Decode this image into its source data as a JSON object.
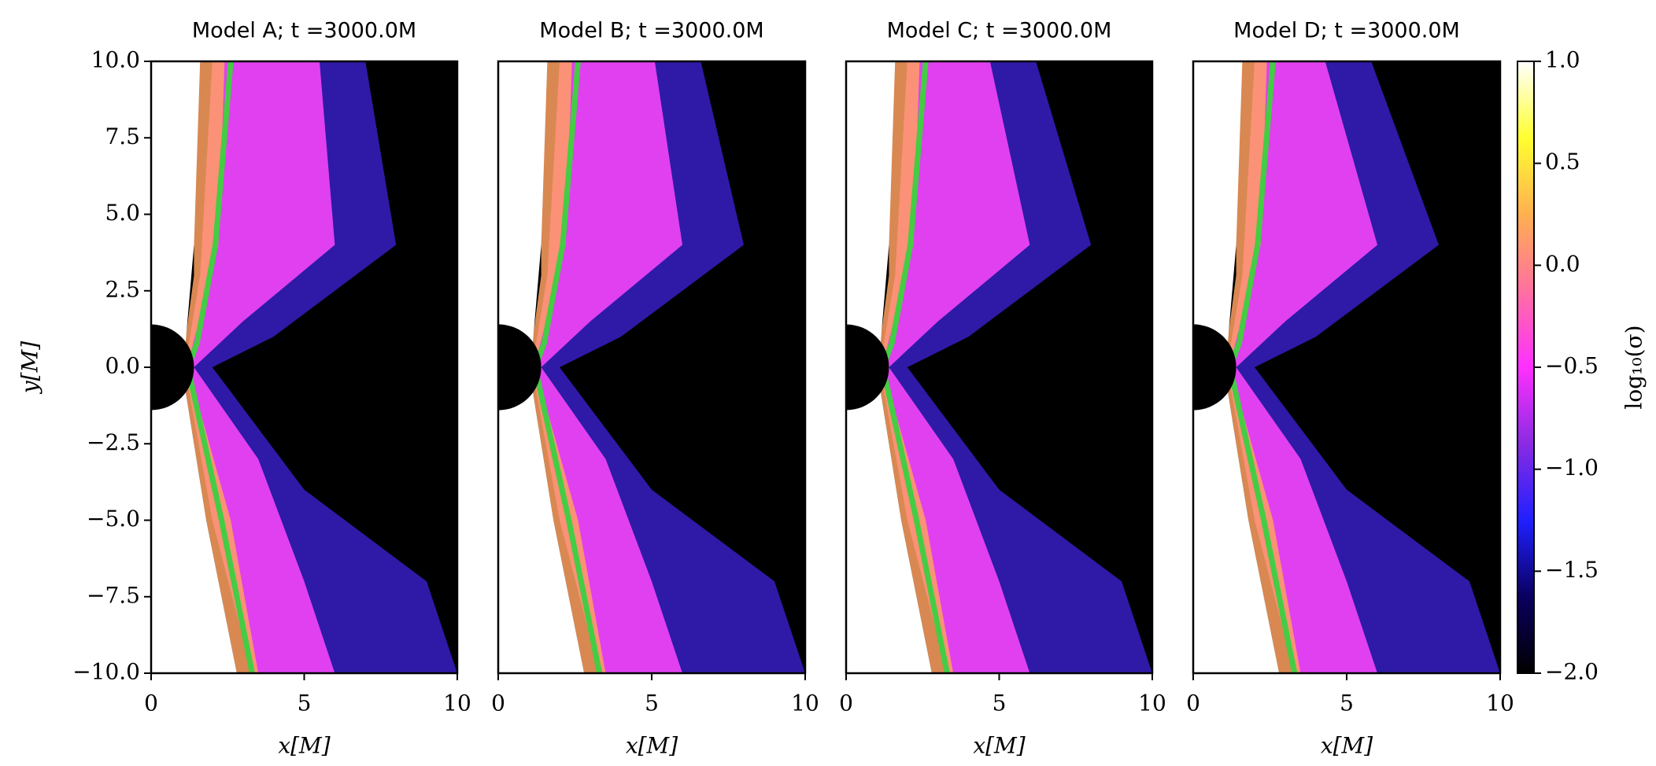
{
  "chart_data": [
    {
      "type": "heatmap",
      "title": "Model A; t =3000.0M",
      "xlabel": "x[M]",
      "ylabel": "y[M]",
      "xlim": [
        0,
        10
      ],
      "ylim": [
        -10,
        10
      ],
      "xticks": [
        0,
        5,
        10
      ],
      "yticks": [
        {
          "value": -10,
          "label": "−10.0"
        },
        {
          "value": -7.5,
          "label": "−7.5"
        },
        {
          "value": -5,
          "label": "−5.0"
        },
        {
          "value": -2.5,
          "label": "−2.5"
        },
        {
          "value": 0,
          "label": "0.0"
        },
        {
          "value": 2.5,
          "label": "2.5"
        },
        {
          "value": 5,
          "label": "5.0"
        },
        {
          "value": 7.5,
          "label": "7.5"
        },
        {
          "value": 10,
          "label": "10.0"
        }
      ]
    },
    {
      "type": "heatmap",
      "title": "Model B; t =3000.0M",
      "xlabel": "x[M]",
      "xlim": [
        0,
        10
      ],
      "ylim": [
        -10,
        10
      ],
      "xticks": [
        0,
        5,
        10
      ]
    },
    {
      "type": "heatmap",
      "title": "Model C; t =3000.0M",
      "xlabel": "x[M]",
      "xlim": [
        0,
        10
      ],
      "ylim": [
        -10,
        10
      ],
      "xticks": [
        0,
        5,
        10
      ]
    },
    {
      "type": "heatmap",
      "title": "Model D; t =3000.0M",
      "xlabel": "x[M]",
      "xlim": [
        0,
        10
      ],
      "ylim": [
        -10,
        10
      ],
      "xticks": [
        0,
        5,
        10
      ]
    },
    {
      "type": "colorbar",
      "label": "log₁₀(σ)",
      "ylim": [
        -2,
        1
      ],
      "yticks": [
        {
          "value": -2,
          "label": "−2.0"
        },
        {
          "value": -1.5,
          "label": "−1.5"
        },
        {
          "value": -1,
          "label": "−1.0"
        },
        {
          "value": -0.5,
          "label": "−0.5"
        },
        {
          "value": 0,
          "label": "0.0"
        },
        {
          "value": 0.5,
          "label": "0.5"
        },
        {
          "value": 1,
          "label": "1.0"
        }
      ],
      "colormap": [
        "#000000",
        "#0a0060",
        "#2020ff",
        "#8a2be2",
        "#ff30ff",
        "#ff70a0",
        "#ffb050",
        "#ffff30",
        "#ffffff"
      ]
    }
  ]
}
